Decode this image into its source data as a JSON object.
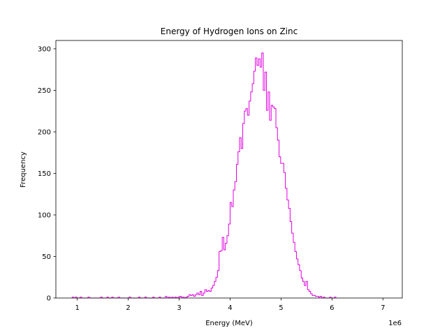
{
  "chart_data": {
    "type": "histogram",
    "title": "Energy of Hydrogen Ions on Zinc",
    "xlabel": "Energy (MeV)",
    "ylabel": "Frequency",
    "x_offset_label": "1e6",
    "x_scale_factor": 1000000,
    "xlim": [
      580000,
      7380000
    ],
    "ylim": [
      0,
      310
    ],
    "xticks": [
      1000000,
      2000000,
      3000000,
      4000000,
      5000000,
      6000000,
      7000000
    ],
    "xtick_labels": [
      "1",
      "2",
      "3",
      "4",
      "5",
      "6",
      "7"
    ],
    "yticks": [
      0,
      50,
      100,
      150,
      200,
      250,
      300
    ],
    "ytick_labels": [
      "0",
      "50",
      "100",
      "150",
      "200",
      "250",
      "300"
    ],
    "grid": false,
    "legend": "none",
    "color": "#e000e0",
    "bin_start": 900000,
    "bin_width": 31000,
    "counts": [
      1,
      0,
      1,
      0,
      0,
      1,
      0,
      0,
      0,
      0,
      1,
      0,
      0,
      0,
      0,
      0,
      0,
      0,
      1,
      0,
      0,
      0,
      1,
      0,
      0,
      1,
      0,
      0,
      0,
      1,
      0,
      0,
      0,
      0,
      0,
      0,
      1,
      0,
      0,
      0,
      0,
      0,
      1,
      0,
      0,
      0,
      1,
      0,
      0,
      0,
      0,
      1,
      0,
      0,
      0,
      1,
      0,
      0,
      0,
      2,
      0,
      1,
      0,
      1,
      0,
      1,
      0,
      1,
      2,
      1,
      1,
      0,
      1,
      2,
      4,
      3,
      4,
      2,
      4,
      6,
      4,
      8,
      3,
      6,
      10,
      8,
      9,
      8,
      12,
      15,
      20,
      25,
      33,
      56,
      57,
      73,
      58,
      66,
      75,
      89,
      115,
      110,
      130,
      140,
      161,
      176,
      193,
      180,
      210,
      225,
      228,
      220,
      237,
      248,
      258,
      273,
      289,
      280,
      288,
      278,
      295,
      250,
      272,
      226,
      248,
      214,
      232,
      230,
      228,
      205,
      190,
      170,
      162,
      162,
      151,
      132,
      118,
      108,
      92,
      78,
      67,
      56,
      47,
      40,
      33,
      24,
      20,
      15,
      20,
      10,
      8,
      5,
      3,
      3,
      2,
      2,
      1,
      2,
      0,
      1,
      0,
      0,
      0,
      1,
      0,
      0,
      1
    ]
  }
}
